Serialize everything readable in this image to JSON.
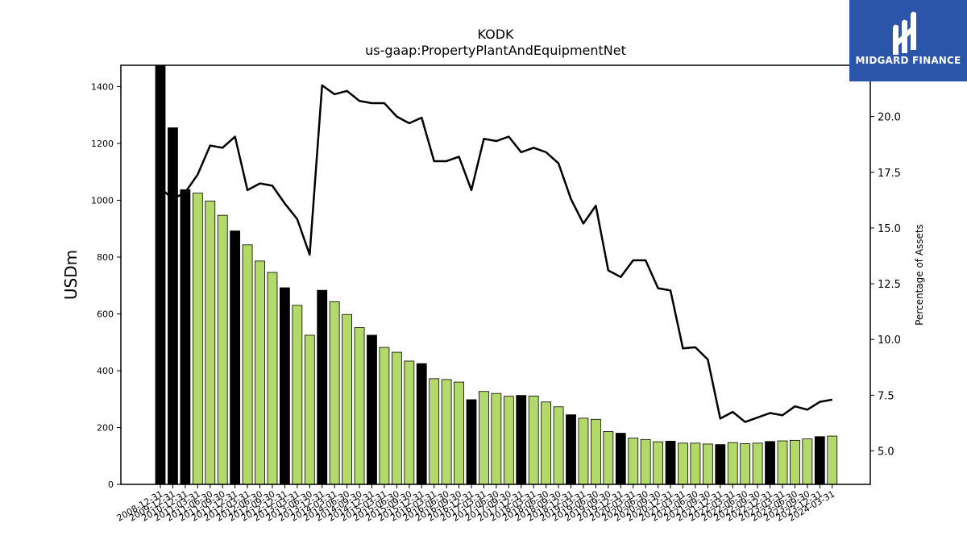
{
  "chart_data": {
    "type": "bar",
    "title": "KODK",
    "subtitle": "us-gaap:PropertyPlantAndEquipmentNet",
    "ylabel": "USDm",
    "ylabel_right": "Percentage of Assets",
    "ylim": [
      0,
      1475
    ],
    "ylim_right": [
      3.5,
      22.3
    ],
    "yticks": [
      0,
      200,
      400,
      600,
      800,
      1000,
      1200,
      1400
    ],
    "yticks_right": [
      5.0,
      7.5,
      10.0,
      12.5,
      15.0,
      17.5,
      20.0
    ],
    "colors": {
      "annual": "#000000",
      "quarter": "#b2d96a",
      "line": "#000000"
    },
    "categories": [
      "2008-12-31",
      "2009-12-31",
      "2010-12-31",
      "2011-03-31",
      "2011-06-30",
      "2011-09-30",
      "2011-12-31",
      "2012-03-31",
      "2012-06-30",
      "2012-09-30",
      "2012-12-31",
      "2013-03-31",
      "2013-06-30",
      "2013-12-31",
      "2014-03-31",
      "2014-06-30",
      "2014-09-30",
      "2014-12-31",
      "2015-03-31",
      "2015-06-30",
      "2015-09-30",
      "2015-12-31",
      "2016-03-31",
      "2016-06-30",
      "2016-09-30",
      "2016-12-31",
      "2017-03-31",
      "2017-06-30",
      "2017-09-30",
      "2017-12-31",
      "2018-03-31",
      "2018-06-30",
      "2018-09-30",
      "2018-12-31",
      "2019-03-31",
      "2019-06-30",
      "2019-09-30",
      "2019-12-31",
      "2020-03-31",
      "2020-06-30",
      "2020-09-30",
      "2020-12-31",
      "2021-03-31",
      "2021-06-30",
      "2021-09-30",
      "2021-12-31",
      "2022-03-31",
      "2022-06-30",
      "2022-09-30",
      "2022-12-31",
      "2023-03-31",
      "2023-06-30",
      "2023-09-30",
      "2023-12-31",
      "2024-03-31"
    ],
    "series": [
      {
        "kind": "bar",
        "values": [
          1475,
          1255,
          1037,
          1025,
          997,
          947,
          892,
          843,
          786,
          746,
          692,
          630,
          525,
          683,
          643,
          598,
          552,
          525,
          482,
          465,
          434,
          425,
          372,
          369,
          360,
          298,
          327,
          320,
          310,
          313,
          311,
          290,
          273,
          245,
          233,
          229,
          186,
          180,
          163,
          158,
          150,
          152,
          145,
          145,
          142,
          140,
          147,
          143,
          145,
          151,
          153,
          155,
          160,
          168,
          170
        ],
        "annual": [
          true,
          true,
          true,
          false,
          false,
          false,
          true,
          false,
          false,
          false,
          true,
          false,
          false,
          true,
          false,
          false,
          false,
          true,
          false,
          false,
          false,
          true,
          false,
          false,
          false,
          true,
          false,
          false,
          false,
          true,
          false,
          false,
          false,
          true,
          false,
          false,
          false,
          true,
          false,
          false,
          false,
          true,
          false,
          false,
          false,
          true,
          false,
          false,
          false,
          true,
          false,
          false,
          false,
          true,
          false
        ]
      },
      {
        "kind": "line",
        "axis": "right",
        "values": [
          16.8,
          16.3,
          16.6,
          17.4,
          18.7,
          18.6,
          19.1,
          16.7,
          17.0,
          16.9,
          16.1,
          15.4,
          13.8,
          21.4,
          21.0,
          21.15,
          20.7,
          20.6,
          20.6,
          20.0,
          19.7,
          19.95,
          18.0,
          18.0,
          18.2,
          16.7,
          19.0,
          18.9,
          19.1,
          18.4,
          18.6,
          18.4,
          17.9,
          16.3,
          15.2,
          16.0,
          13.1,
          12.8,
          13.55,
          13.55,
          12.3,
          12.2,
          9.6,
          9.65,
          9.1,
          6.45,
          6.75,
          6.3,
          6.5,
          6.7,
          6.6,
          7.0,
          6.85,
          7.2,
          7.3
        ]
      }
    ]
  },
  "logo": {
    "text": "MIDGARD FINANCE"
  }
}
